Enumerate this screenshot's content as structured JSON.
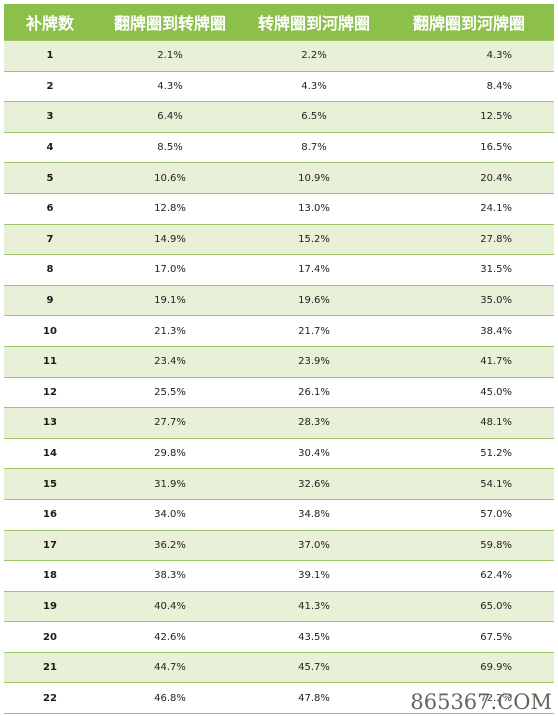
{
  "table": {
    "headers": [
      "补牌数",
      "翻牌圈到转牌圈",
      "转牌圈到河牌圈",
      "翻牌圈到河牌圈"
    ],
    "rows": [
      [
        "1",
        "2.1%",
        "2.2%",
        "4.3%"
      ],
      [
        "2",
        "4.3%",
        "4.3%",
        "8.4%"
      ],
      [
        "3",
        "6.4%",
        "6.5%",
        "12.5%"
      ],
      [
        "4",
        "8.5%",
        "8.7%",
        "16.5%"
      ],
      [
        "5",
        "10.6%",
        "10.9%",
        "20.4%"
      ],
      [
        "6",
        "12.8%",
        "13.0%",
        "24.1%"
      ],
      [
        "7",
        "14.9%",
        "15.2%",
        "27.8%"
      ],
      [
        "8",
        "17.0%",
        "17.4%",
        "31.5%"
      ],
      [
        "9",
        "19.1%",
        "19.6%",
        "35.0%"
      ],
      [
        "10",
        "21.3%",
        "21.7%",
        "38.4%"
      ],
      [
        "11",
        "23.4%",
        "23.9%",
        "41.7%"
      ],
      [
        "12",
        "25.5%",
        "26.1%",
        "45.0%"
      ],
      [
        "13",
        "27.7%",
        "28.3%",
        "48.1%"
      ],
      [
        "14",
        "29.8%",
        "30.4%",
        "51.2%"
      ],
      [
        "15",
        "31.9%",
        "32.6%",
        "54.1%"
      ],
      [
        "16",
        "34.0%",
        "34.8%",
        "57.0%"
      ],
      [
        "17",
        "36.2%",
        "37.0%",
        "59.8%"
      ],
      [
        "18",
        "38.3%",
        "39.1%",
        "62.4%"
      ],
      [
        "19",
        "40.4%",
        "41.3%",
        "65.0%"
      ],
      [
        "20",
        "42.6%",
        "43.5%",
        "67.5%"
      ],
      [
        "21",
        "44.7%",
        "45.7%",
        "69.9%"
      ],
      [
        "22",
        "46.8%",
        "47.8%",
        "72.2%"
      ]
    ]
  },
  "watermark": "865367.COM",
  "colors": {
    "header_bg": "#8dc04a",
    "stripe_bg": "#e8f0d8",
    "row_border": "#9ec66a"
  }
}
